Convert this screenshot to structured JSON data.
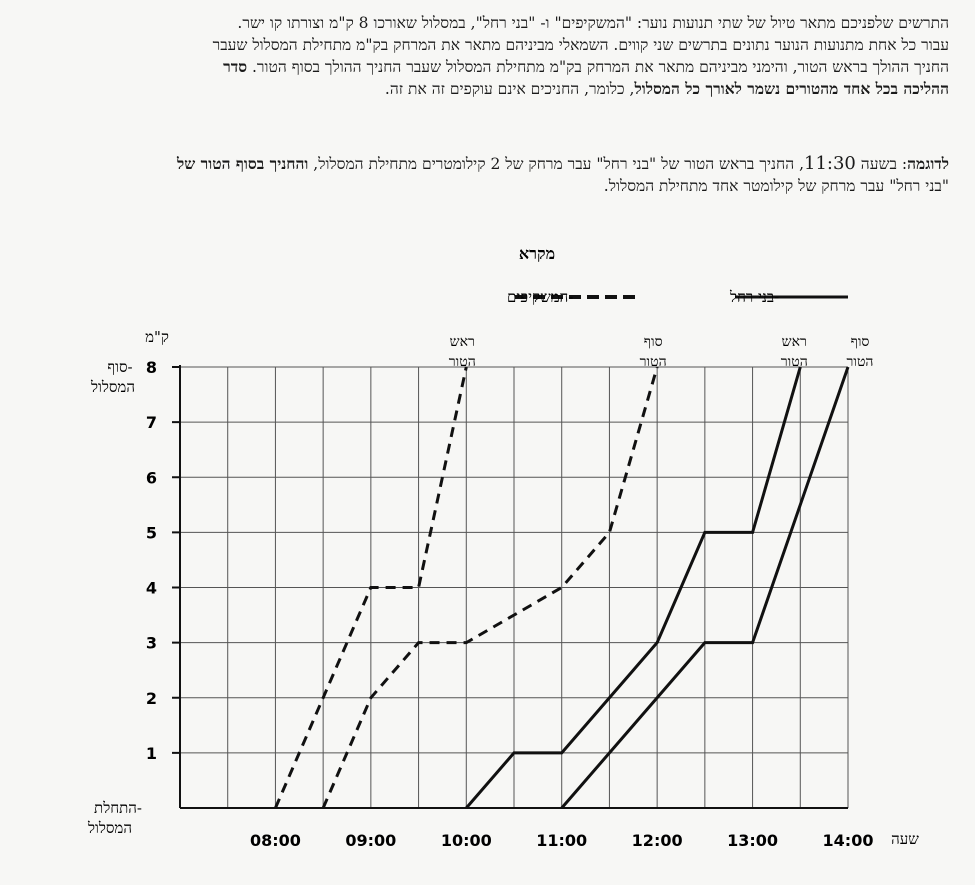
{
  "intro": {
    "line1": "התרשים שלפניכם מתאר טיול של שתי תנועות נוער: \"המשקיפים\" ו- \"בני רחל\", במסלול שאורכו 8 ק\"מ וצורתו קו ישר.",
    "line2": "עבור כל אחת מתנועות הנוער נתונים בתרשים שני קווים. השמאלי מביניהם מתאר את המרחק בק\"מ מתחילת המסלול שעבר",
    "line3_start": "החניך ההולך בראש הטור, והימני מביניהם מתאר את המרחק בק\"מ מתחילת המסלול שעבר החניך ההולך בסוף הטור.",
    "line3_bold": "סדר",
    "line4_bold": "ההליכה בכל אחד מהטורים נשמר לאורך כל המסלול",
    "line4_end": ", כלומר, החניכים אינם עוקפים זה את זה."
  },
  "example": {
    "label": "לדוגמה",
    "text_a": ": בשעה ",
    "time": "11:30",
    "text_b": ", החניך בראש הטור של \"בני רחל\" עבר מרחק של 2 קילומטרים מתחילת המסלול, ",
    "text_bold": "והחניך בסוף הטור של",
    "line2": "\"בני רחל\" עבר מרחק של קילומטר אחד מתחילת המסלול."
  },
  "chart_data": {
    "type": "line",
    "legend_title": "מקרא",
    "legend_placement": "top-center",
    "y_unit_label": "ק\"מ",
    "y_top_label": [
      "-סוף",
      "המסלול"
    ],
    "y_bottom_label": [
      "-התחלת",
      "המסלול"
    ],
    "x_unit_label": "שעה",
    "x_range": [
      "07:00",
      "14:00"
    ],
    "y_range": [
      0,
      8
    ],
    "x_ticks": [
      "08:00",
      "09:00",
      "10:00",
      "11:00",
      "12:00",
      "13:00",
      "14:00"
    ],
    "y_ticks": [
      1,
      2,
      3,
      4,
      5,
      6,
      7,
      8
    ],
    "grid": true,
    "series": [
      {
        "name": "-המשקיפים",
        "style": "dashed",
        "color": "#111111",
        "lines": [
          {
            "label": [
              "ראש",
              "הטור"
            ],
            "points": [
              [
                "08:00",
                0
              ],
              [
                "09:00",
                4
              ],
              [
                "09:30",
                4
              ],
              [
                "10:00",
                8
              ]
            ]
          },
          {
            "label": [
              "סוף",
              "הטור"
            ],
            "points": [
              [
                "08:30",
                0
              ],
              [
                "09:00",
                2
              ],
              [
                "09:30",
                3
              ],
              [
                "10:00",
                3
              ],
              [
                "11:00",
                4
              ],
              [
                "11:30",
                5
              ],
              [
                "12:00",
                8
              ]
            ]
          }
        ]
      },
      {
        "name": "-בני רחל",
        "style": "solid",
        "color": "#111111",
        "lines": [
          {
            "label": [
              "ראש",
              "הטור"
            ],
            "points": [
              [
                "10:00",
                0
              ],
              [
                "10:30",
                1
              ],
              [
                "11:00",
                1
              ],
              [
                "12:00",
                3
              ],
              [
                "12:30",
                5
              ],
              [
                "13:00",
                5
              ],
              [
                "13:30",
                8
              ]
            ]
          },
          {
            "label": [
              "סוף",
              "הטור"
            ],
            "points": [
              [
                "11:00",
                0
              ],
              [
                "12:00",
                2
              ],
              [
                "12:30",
                3
              ],
              [
                "13:00",
                3
              ],
              [
                "13:30",
                5.5
              ],
              [
                "14:00",
                8
              ]
            ]
          }
        ]
      }
    ]
  }
}
